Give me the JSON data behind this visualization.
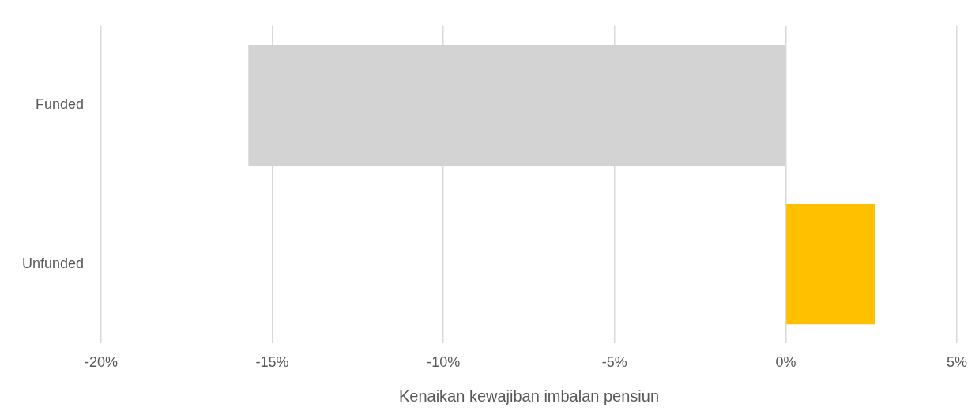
{
  "chart_data": {
    "type": "bar",
    "orientation": "horizontal",
    "xlabel": "Kenaikan kewajiban imbalan pensiun",
    "categories": [
      "Funded",
      "Unfunded"
    ],
    "values": [
      -15.7,
      2.6
    ],
    "colors": [
      "#d3d3d3",
      "#ffc000"
    ],
    "xlim": [
      -20,
      5
    ],
    "xticks": [
      {
        "value": -20,
        "label": "-20%"
      },
      {
        "value": -15,
        "label": "-15%"
      },
      {
        "value": -10,
        "label": "-10%"
      },
      {
        "value": -5,
        "label": "-5%"
      },
      {
        "value": 0,
        "label": "0%"
      },
      {
        "value": 5,
        "label": "5%"
      }
    ],
    "grid": "x",
    "legend": false
  }
}
